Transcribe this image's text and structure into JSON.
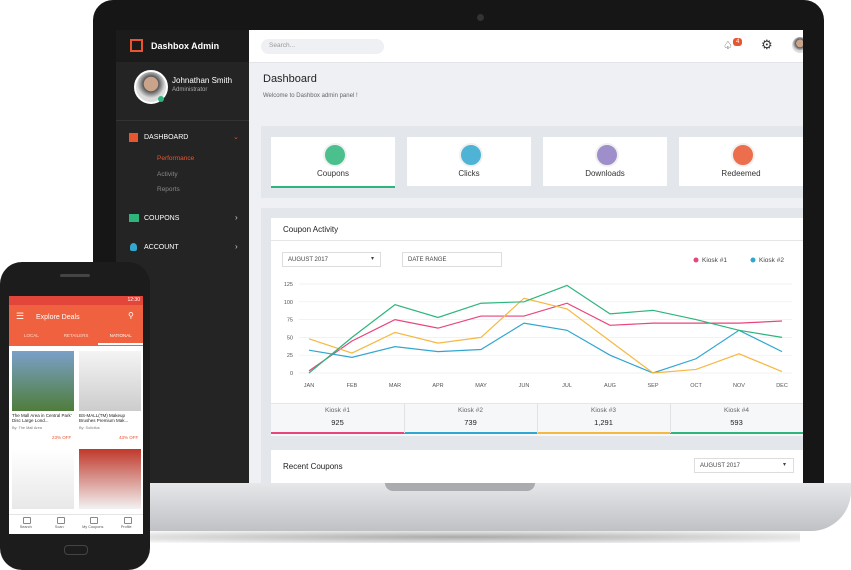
{
  "sidebar": {
    "brand": "Dashbox Admin",
    "user_name": "Johnathan Smith",
    "user_role": "Administrator",
    "menu": [
      "DASHBOARD",
      "COUPONS",
      "ACCOUNT"
    ],
    "submenu": [
      "Performance",
      "Activity",
      "Reports"
    ]
  },
  "header": {
    "search_placeholder": "Search...",
    "notifications": 4
  },
  "page": {
    "title": "Dashboard",
    "subtitle": "Welcome to Dashbox admin panel !"
  },
  "tabs": [
    "Coupons",
    "Clicks",
    "Downloads",
    "Redeemed"
  ],
  "chart_data": {
    "type": "line",
    "title": "Coupon Activity",
    "filter": "AUGUST 2017",
    "date_range": "DATE RANGE",
    "categories": [
      "JAN",
      "FEB",
      "MAR",
      "APR",
      "MAY",
      "JUN",
      "JUL",
      "AUG",
      "SEP",
      "OCT",
      "NOV",
      "DEC"
    ],
    "series": [
      {
        "name": "Kiosk #1",
        "color": "#e8457c",
        "values": [
          3,
          45,
          75,
          63,
          80,
          80,
          98,
          67,
          70,
          70,
          70,
          73
        ]
      },
      {
        "name": "Kiosk #2",
        "color": "#31a6d0",
        "values": [
          32,
          22,
          37,
          30,
          33,
          70,
          60,
          25,
          0,
          20,
          60,
          30
        ]
      },
      {
        "name": "Kiosk #3",
        "color": "#f5b843",
        "values": [
          48,
          28,
          57,
          42,
          50,
          105,
          90,
          45,
          0,
          5,
          27,
          2
        ]
      },
      {
        "name": "Kiosk #4",
        "color": "#2db57c",
        "values": [
          0,
          50,
          96,
          78,
          98,
          100,
          123,
          83,
          88,
          75,
          60,
          50
        ]
      }
    ],
    "ylim": [
      0,
      125
    ],
    "yticks": [
      0,
      25,
      50,
      75,
      100,
      125
    ],
    "grid": true
  },
  "totals": [
    {
      "name": "Kiosk #1",
      "value": "925"
    },
    {
      "name": "Kiosk #2",
      "value": "739"
    },
    {
      "name": "Kiosk #3",
      "value": "1,291"
    },
    {
      "name": "Kiosk #4",
      "value": "593"
    }
  ],
  "recent": {
    "title": "Recent Coupons",
    "filter": "AUGUST 2017"
  },
  "phone": {
    "time": "12:30",
    "title": "Explore Deals",
    "tabs": [
      "LOCAL",
      "RETAILERS",
      "NATIONAL"
    ],
    "items": [
      {
        "title": "The Mall Area in Central Park' Disc Large Lond...",
        "by": "By: The Mall Area",
        "discount": "23% OFF"
      },
      {
        "title": "BS-MALL(TM) Makeup Brushes Premium Mak...",
        "by": "By: Solicitus",
        "discount": "43% OFF"
      }
    ],
    "nav": [
      "Search",
      "Scan",
      "My Coupons",
      "Profile"
    ]
  }
}
